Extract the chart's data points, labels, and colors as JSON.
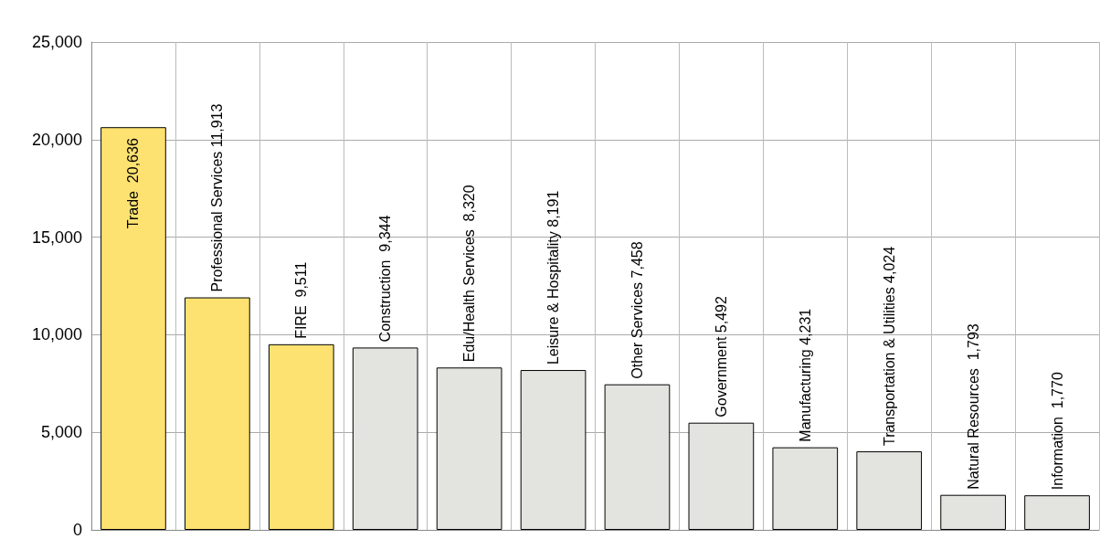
{
  "chart_data": {
    "type": "bar",
    "categories": [
      null,
      null,
      null,
      null,
      null,
      null,
      null,
      null,
      null,
      null,
      null,
      null
    ],
    "values": [
      20636,
      11913,
      9511,
      9344,
      8320,
      8191,
      7458,
      5492,
      4231,
      4024,
      1793,
      1770
    ],
    "colors": [
      "#fde272",
      "#fde272",
      "#fde272",
      "#e3e3df",
      "#e3e3df",
      "#e3e3df",
      "#e3e3df",
      "#e3e3df",
      "#e3e3df",
      "#e3e3df",
      "#e3e3df",
      "#e3e3df"
    ],
    "value_labels": [
      "Trade  20,636",
      "Professional Services 11,913",
      "FIRE  9,511",
      "Construction  9,344",
      "Edu/Health Services  8,320",
      "Leisure & Hospitality 8,191",
      "Other Services 7,458",
      "Government 5,492",
      "Manufacturing 4,231",
      "Transportation & Utilities 4,024",
      "Natural Resources  1,793",
      "Information  1,770"
    ],
    "ylim": [
      0,
      25000
    ],
    "yticks": [
      0,
      {
        "value": 5000,
        "label": "5,000"
      },
      {
        "value": 10000,
        "label": "10,000"
      },
      {
        "value": 15000,
        "label": "15,000"
      },
      {
        "value": 20000,
        "label": "20,000"
      },
      {
        "value": 25000,
        "label": "25,000"
      }
    ],
    "grid": true
  }
}
